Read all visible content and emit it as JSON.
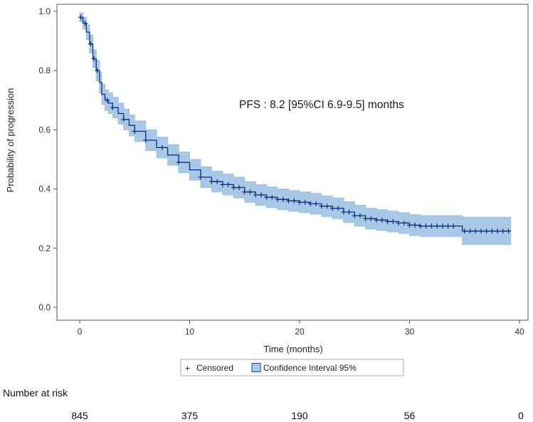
{
  "chart_data": {
    "type": "line",
    "subtype": "kaplan-meier",
    "title": "",
    "annotation": "PFS : 8.2 [95%CI 6.9-9.5] months",
    "xlabel": "Time (months)",
    "ylabel": "Probability of progression",
    "xlim": [
      0,
      40
    ],
    "ylim": [
      0,
      1
    ],
    "x_ticks": [
      0,
      10,
      20,
      30,
      40
    ],
    "y_ticks": [
      0.0,
      0.2,
      0.4,
      0.6,
      0.8,
      1.0
    ],
    "y_tick_labels": [
      "0.0",
      "0.2",
      "0.4",
      "0.6",
      "0.8",
      "1.0"
    ],
    "grid": false,
    "legend_position": "bottom-center",
    "legend": [
      {
        "symbol": "+",
        "label": "Censored"
      },
      {
        "symbol": "box",
        "label": "Confidence Interval 95%"
      }
    ],
    "colors": {
      "line": "#0b2e7a",
      "ci_fill": "#a8c8e8",
      "ci_edge": "#9dbfe0",
      "axis": "#555555"
    },
    "series": [
      {
        "name": "PFS",
        "x": [
          0,
          0.3,
          0.6,
          0.9,
          1.2,
          1.5,
          1.8,
          2.0,
          2.3,
          2.6,
          3.0,
          3.5,
          4.0,
          4.5,
          5,
          6,
          7,
          8,
          9,
          10,
          11,
          12,
          13,
          14,
          15,
          16,
          17,
          18,
          19,
          20,
          21,
          22,
          23,
          24,
          25,
          26,
          27,
          28,
          29,
          30,
          31,
          32,
          33,
          34,
          34.8,
          36,
          37,
          38,
          39.2
        ],
        "y": [
          0.98,
          0.96,
          0.93,
          0.89,
          0.84,
          0.8,
          0.76,
          0.72,
          0.7,
          0.69,
          0.675,
          0.655,
          0.635,
          0.615,
          0.595,
          0.565,
          0.54,
          0.515,
          0.49,
          0.465,
          0.44,
          0.425,
          0.415,
          0.405,
          0.39,
          0.38,
          0.372,
          0.365,
          0.36,
          0.355,
          0.35,
          0.342,
          0.335,
          0.322,
          0.31,
          0.3,
          0.295,
          0.29,
          0.285,
          0.278,
          0.275,
          0.275,
          0.275,
          0.275,
          0.258,
          0.258,
          0.258,
          0.258,
          0.258
        ],
        "ci_lower": [
          0.965,
          0.94,
          0.905,
          0.86,
          0.81,
          0.765,
          0.725,
          0.685,
          0.665,
          0.655,
          0.64,
          0.62,
          0.6,
          0.58,
          0.56,
          0.53,
          0.505,
          0.48,
          0.455,
          0.43,
          0.405,
          0.39,
          0.38,
          0.37,
          0.355,
          0.345,
          0.337,
          0.33,
          0.325,
          0.32,
          0.315,
          0.307,
          0.3,
          0.287,
          0.275,
          0.265,
          0.26,
          0.255,
          0.25,
          0.243,
          0.24,
          0.24,
          0.24,
          0.24,
          0.212,
          0.212,
          0.212,
          0.212,
          0.212
        ],
        "ci_upper": [
          0.995,
          0.98,
          0.955,
          0.92,
          0.87,
          0.835,
          0.795,
          0.755,
          0.735,
          0.725,
          0.71,
          0.69,
          0.67,
          0.65,
          0.63,
          0.6,
          0.575,
          0.55,
          0.525,
          0.5,
          0.475,
          0.46,
          0.45,
          0.44,
          0.425,
          0.415,
          0.407,
          0.4,
          0.395,
          0.39,
          0.385,
          0.377,
          0.37,
          0.357,
          0.345,
          0.335,
          0.33,
          0.325,
          0.32,
          0.313,
          0.31,
          0.31,
          0.31,
          0.31,
          0.305,
          0.305,
          0.305,
          0.305,
          0.305
        ]
      }
    ],
    "censored_x": [
      0.1,
      0.5,
      1.0,
      1.3,
      1.6,
      2.5,
      3.0,
      4.0,
      5.0,
      6.0,
      7.5,
      9.0,
      11.0,
      12.0,
      12.5,
      13.0,
      13.5,
      14.0,
      14.5,
      15.0,
      15.5,
      16.0,
      16.5,
      17.0,
      17.5,
      18.0,
      18.5,
      19.0,
      19.5,
      20.0,
      20.5,
      21.0,
      21.5,
      22.0,
      22.5,
      23.0,
      23.5,
      24.0,
      24.5,
      25.0,
      25.5,
      26.0,
      26.5,
      27.0,
      27.5,
      28.0,
      28.5,
      29.0,
      29.5,
      30.0,
      30.5,
      31.0,
      31.5,
      32.0,
      32.5,
      33.0,
      33.5,
      34.0,
      35.0,
      35.5,
      36.0,
      36.5,
      37.0,
      37.5,
      38.0,
      38.5,
      39.0
    ]
  },
  "risk_table": {
    "title": "Number at risk",
    "times": [
      0,
      10,
      20,
      30,
      40
    ],
    "counts": [
      "845",
      "375",
      "190",
      "56",
      "0"
    ]
  }
}
